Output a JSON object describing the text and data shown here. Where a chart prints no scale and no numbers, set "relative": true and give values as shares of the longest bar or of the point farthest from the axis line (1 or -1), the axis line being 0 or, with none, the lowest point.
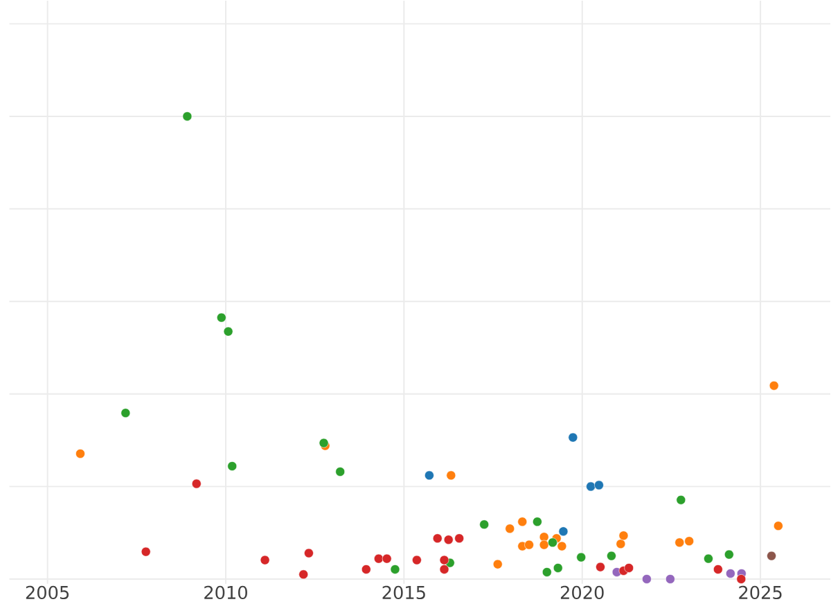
{
  "chart_data": {
    "type": "scatter",
    "relative": true,
    "grid": true,
    "xlim": [
      2003.93,
      2026.96
    ],
    "xticks": [
      2005,
      2010,
      2015,
      2020,
      2025
    ],
    "series": [
      {
        "color": "#ff7f0e",
        "x": [
          2005.92,
          2012.79,
          2016.32,
          2017.63,
          2017.97,
          2018.32,
          2018.32,
          2018.51,
          2018.93,
          2018.93,
          2019.28,
          2019.43,
          2021.08,
          2021.16,
          2022.73,
          2023.0,
          2025.38,
          2025.5
        ],
        "values": [
          0.271,
          0.288,
          0.224,
          0.032,
          0.109,
          0.124,
          0.071,
          0.074,
          0.091,
          0.074,
          0.088,
          0.071,
          0.076,
          0.094,
          0.079,
          0.082,
          0.418,
          0.115
        ]
      },
      {
        "color": "#2ca02c",
        "x": [
          2008.92,
          2009.88,
          2010.07,
          2007.19,
          2010.18,
          2012.75,
          2013.21,
          2014.75,
          2016.29,
          2017.25,
          2018.74,
          2019.17,
          2019.01,
          2019.32,
          2019.97,
          2020.82,
          2022.77,
          2023.54,
          2024.12
        ],
        "values": [
          1.0,
          0.565,
          0.535,
          0.359,
          0.244,
          0.294,
          0.232,
          0.021,
          0.035,
          0.118,
          0.124,
          0.079,
          0.015,
          0.024,
          0.047,
          0.05,
          0.171,
          0.044,
          0.053
        ]
      },
      {
        "color": "#9467bd",
        "x": [
          2020.97,
          2021.81,
          2022.47,
          2024.16,
          2024.47
        ],
        "values": [
          0.015,
          0.0,
          0.0,
          0.012,
          0.012
        ]
      },
      {
        "color": "#d62728",
        "x": [
          2009.18,
          2007.76,
          2011.1,
          2012.18,
          2012.33,
          2013.94,
          2014.29,
          2014.52,
          2015.36,
          2015.94,
          2016.25,
          2016.55,
          2016.13,
          2016.13,
          2020.51,
          2021.16,
          2021.31,
          2023.81,
          2024.46
        ],
        "values": [
          0.206,
          0.059,
          0.041,
          0.01,
          0.056,
          0.021,
          0.044,
          0.044,
          0.041,
          0.088,
          0.085,
          0.088,
          0.041,
          0.021,
          0.026,
          0.018,
          0.024,
          0.021,
          0.0
        ]
      },
      {
        "color": "#1f77b4",
        "x": [
          2015.71,
          2019.74,
          2020.24,
          2020.47,
          2019.47
        ],
        "values": [
          0.224,
          0.306,
          0.2,
          0.203,
          0.103
        ]
      },
      {
        "color": "#8c564b",
        "x": [
          2025.31
        ],
        "values": [
          0.05
        ]
      }
    ]
  }
}
